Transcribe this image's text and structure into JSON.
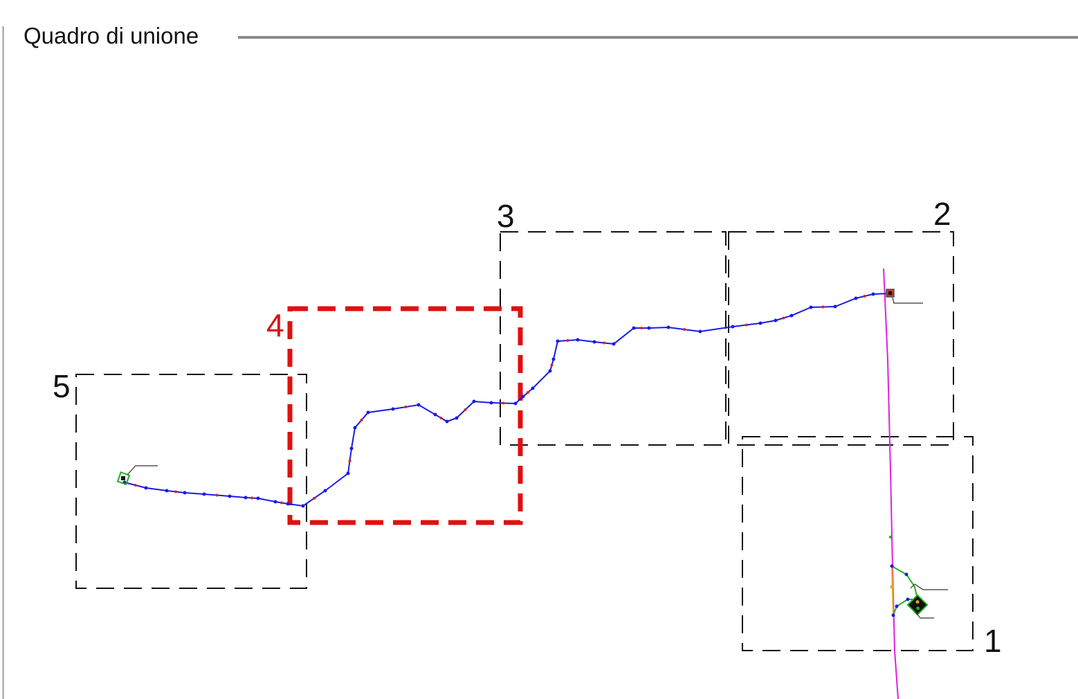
{
  "title": "Quadro di unione",
  "sheets": [
    {
      "id": "1",
      "label": "1",
      "active": false
    },
    {
      "id": "2",
      "label": "2",
      "active": false
    },
    {
      "id": "3",
      "label": "3",
      "active": false
    },
    {
      "id": "4",
      "label": "4",
      "active": true
    },
    {
      "id": "5",
      "label": "5",
      "active": false
    }
  ],
  "colors": {
    "route": "#1a1ae6",
    "route_nodes_blue": "#1a1ae6",
    "route_nodes_red": "#e02020",
    "active_sheet": "#e01010",
    "sheet_frame": "#111111",
    "boundary_line": "#e020e0",
    "branch_green": "#20b020",
    "branch_orange": "#f0a020",
    "background": "#ffffff"
  }
}
